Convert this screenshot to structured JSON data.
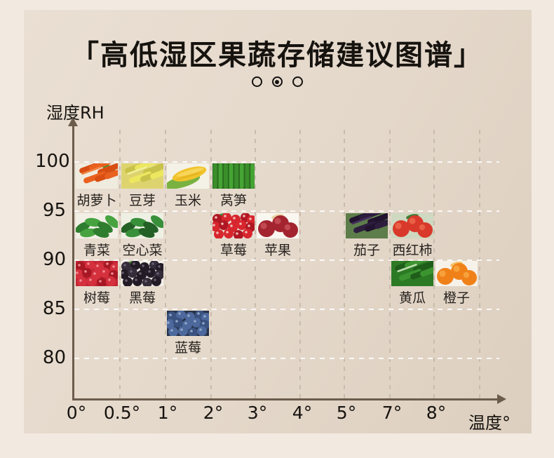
{
  "header": {
    "title": "「高低湿区果蔬存储建议图谱」",
    "dots": [
      "inactive",
      "active",
      "inactive"
    ]
  },
  "chart_data": {
    "type": "scatter",
    "title": "高低湿区果蔬存储建议图谱",
    "xlabel": "温度°",
    "ylabel": "湿度RH",
    "x_ticks": [
      "0°",
      "0.5°",
      "1°",
      "2°",
      "3°",
      "4°",
      "5°",
      "7°",
      "8°"
    ],
    "y_ticks": [
      "100",
      "95",
      "90",
      "85",
      "80"
    ],
    "grid": "dashed",
    "items": [
      {
        "name": "胡萝卜",
        "temp": "0°",
        "humidity_band": "95-100",
        "humidity_approx": 98,
        "col": 0,
        "row": 0,
        "icon": "rodsD",
        "colors": {
          "bg": "#f0ebdf",
          "main": "#e9611f",
          "dark": "#d84e12",
          "hi": "#f1823f",
          "leaf": "#4e9430"
        }
      },
      {
        "name": "豆芽",
        "temp": "0.5°",
        "humidity_band": "95-100",
        "humidity_approx": 98,
        "col": 1,
        "row": 0,
        "icon": "rodsD",
        "colors": {
          "bg": "#ddd46f",
          "main": "#ece75f",
          "dark": "#c9c24a",
          "hi": "#f2eF9a",
          "leaf": "#e6e392"
        }
      },
      {
        "name": "玉米",
        "temp": "1°",
        "humidity_band": "95-100",
        "humidity_approx": 98,
        "col": 2,
        "row": 0,
        "icon": "cob",
        "colors": {
          "bg": "#f4f1e6",
          "main": "#f2c42c",
          "dark": "#d9a81a",
          "hi": "#f8dc6a",
          "leaf": "#79b240"
        }
      },
      {
        "name": "莴笋",
        "temp": "2°",
        "humidity_band": "95-100",
        "humidity_approx": 98,
        "col": 3,
        "row": 0,
        "icon": "rodsV",
        "colors": {
          "bg": "#2a6b1f",
          "main": "#45a433",
          "dark": "#2a6b1f",
          "hi": "#3b8f2b"
        }
      },
      {
        "name": "青菜",
        "temp": "0°",
        "humidity_band": "90-95",
        "humidity_approx": 93,
        "col": 0,
        "row": 1,
        "icon": "leaves",
        "colors": {
          "bg": "#f2efe6",
          "main": "#46a33f",
          "dark": "#2f7d2e",
          "hi": "#6cc05f"
        }
      },
      {
        "name": "空心菜",
        "temp": "0.5°",
        "humidity_band": "90-95",
        "humidity_approx": 93,
        "col": 1,
        "row": 1,
        "icon": "leaves",
        "colors": {
          "bg": "#eef0e4",
          "main": "#39903a",
          "dark": "#236126",
          "hi": "#55ad4e"
        }
      },
      {
        "name": "草莓",
        "temp": "2°",
        "humidity_band": "90-95",
        "humidity_approx": 93,
        "col": 3,
        "row": 1,
        "icon": "berries",
        "colors": {
          "bg": "#e6e2d8",
          "main": "#d8262e",
          "dark": "#b01722",
          "hi": "#f3b9b4",
          "leaf": "#3a8f3a"
        }
      },
      {
        "name": "苹果",
        "temp": "3°",
        "humidity_band": "90-95",
        "humidity_approx": 93,
        "col": 4,
        "row": 1,
        "icon": "round",
        "colors": {
          "bg": "#faf7f1",
          "main": "#a3242f",
          "dark": "#8a1a26",
          "hi": "#c9525b",
          "leaf": "#e8d2a0"
        }
      },
      {
        "name": "茄子",
        "temp": "5°",
        "humidity_band": "90-95",
        "humidity_approx": 93,
        "col": 6,
        "row": 1,
        "icon": "rodsD",
        "colors": {
          "bg": "#5d7d4a",
          "main": "#2e1e3e",
          "dark": "#221330",
          "hi": "#46305e",
          "leaf": "#6f9456"
        }
      },
      {
        "name": "西红柿",
        "temp": "7°",
        "humidity_band": "90-95",
        "humidity_approx": 93,
        "col": 7,
        "row": 1,
        "icon": "round",
        "colors": {
          "bg": "#cfd8c0",
          "main": "#d8392a",
          "dark": "#b52619",
          "hi": "#ef6a4e",
          "leaf": "#3e7d35"
        }
      },
      {
        "name": "树莓",
        "temp": "0°",
        "humidity_band": "85-90",
        "humidity_approx": 88,
        "col": 0,
        "row": 2,
        "icon": "berries",
        "colors": {
          "bg": "#c32634",
          "main": "#d4303d",
          "dark": "#a81824",
          "hi": "#ee8a90"
        }
      },
      {
        "name": "黑莓",
        "temp": "0.5°",
        "humidity_band": "85-90",
        "humidity_approx": 88,
        "col": 1,
        "row": 2,
        "icon": "berries",
        "colors": {
          "bg": "#f2f0ea",
          "main": "#221b26",
          "dark": "#352c3a",
          "hi": "#6a5f72",
          "leaf": "#4d8038"
        }
      },
      {
        "name": "黄瓜",
        "temp": "7°",
        "humidity_band": "85-90",
        "humidity_approx": 88,
        "col": 7,
        "row": 2,
        "icon": "rodsD",
        "colors": {
          "bg": "#2c7a24",
          "main": "#3c9430",
          "dark": "#1f5e1a",
          "hi": "#bcdcae"
        }
      },
      {
        "name": "橙子",
        "temp": "8°",
        "humidity_band": "85-90",
        "humidity_approx": 88,
        "col": 8,
        "row": 2,
        "icon": "round",
        "colors": {
          "bg": "#f6f2ea",
          "main": "#f08119",
          "dark": "#d96c0c",
          "hi": "#f9a943",
          "leaf": "#f3c063"
        }
      },
      {
        "name": "蓝莓",
        "temp": "1°",
        "humidity_band": "80-85",
        "humidity_approx": 83,
        "col": 2,
        "row": 3,
        "icon": "berries",
        "colors": {
          "bg": "#273247",
          "main": "#4c689c",
          "dark": "#3a5280",
          "hi": "#8fa6c8"
        }
      }
    ]
  }
}
